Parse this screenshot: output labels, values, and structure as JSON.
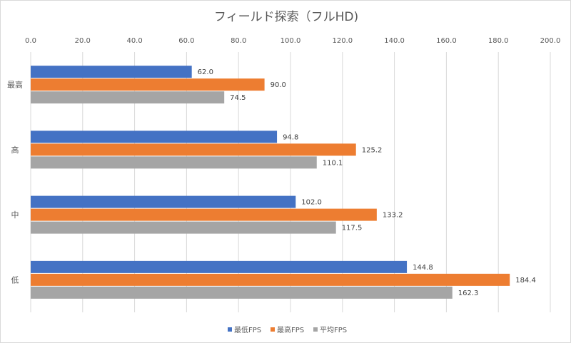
{
  "chart_data": {
    "type": "bar",
    "orientation": "horizontal",
    "title": "フィールド探索（フルHD)",
    "categories": [
      "最高",
      "高",
      "中",
      "低"
    ],
    "series": [
      {
        "name": "最低FPS",
        "color": "#4472c4",
        "values": [
          62.0,
          94.8,
          102.0,
          144.8
        ]
      },
      {
        "name": "最高FPS",
        "color": "#ed7d31",
        "values": [
          90.0,
          125.2,
          133.2,
          184.4
        ]
      },
      {
        "name": "平均FPS",
        "color": "#a5a5a5",
        "values": [
          74.5,
          110.1,
          117.5,
          162.3
        ]
      }
    ],
    "xlim": [
      0,
      200
    ],
    "xticks": [
      "0.0",
      "20.0",
      "40.0",
      "60.0",
      "80.0",
      "100.0",
      "120.0",
      "140.0",
      "160.0",
      "180.0",
      "200.0"
    ],
    "grid": true,
    "axis_position": "top",
    "legend": "bottom"
  }
}
